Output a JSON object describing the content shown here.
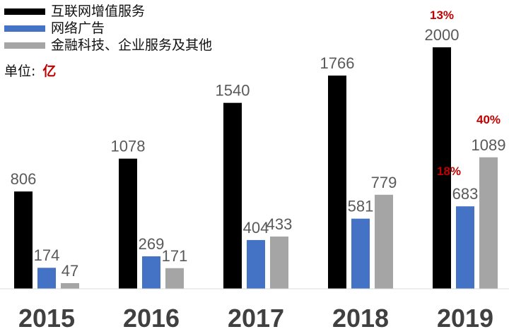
{
  "legend": {
    "items": [
      {
        "label": "互联网增值服务",
        "color": "#000000"
      },
      {
        "label": "网络广告",
        "color": "#4472c4"
      },
      {
        "label": "金融科技、企业服务及其他",
        "color": "#a5a5a5"
      }
    ]
  },
  "unit": {
    "label": "单位:",
    "value": "亿"
  },
  "chart_data": {
    "type": "bar",
    "categories": [
      "2015",
      "2016",
      "2017",
      "2018",
      "2019"
    ],
    "series": [
      {
        "name": "互联网增值服务",
        "color": "#000000",
        "values": [
          806,
          1078,
          1540,
          1766,
          2000
        ]
      },
      {
        "name": "网络广告",
        "color": "#4472c4",
        "values": [
          174,
          269,
          404,
          581,
          683
        ]
      },
      {
        "name": "金融科技、企业服务及其他",
        "color": "#a5a5a5",
        "values": [
          47,
          171,
          433,
          779,
          1089
        ]
      }
    ],
    "ylim": [
      0,
      2000
    ],
    "grid": false,
    "legend_position": "top-left",
    "annotations": [
      {
        "text": "13%",
        "category": "2019",
        "series": 0
      },
      {
        "text": "18%",
        "category": "2019",
        "series": 1
      },
      {
        "text": "40%",
        "category": "2019",
        "series": 2
      }
    ]
  }
}
